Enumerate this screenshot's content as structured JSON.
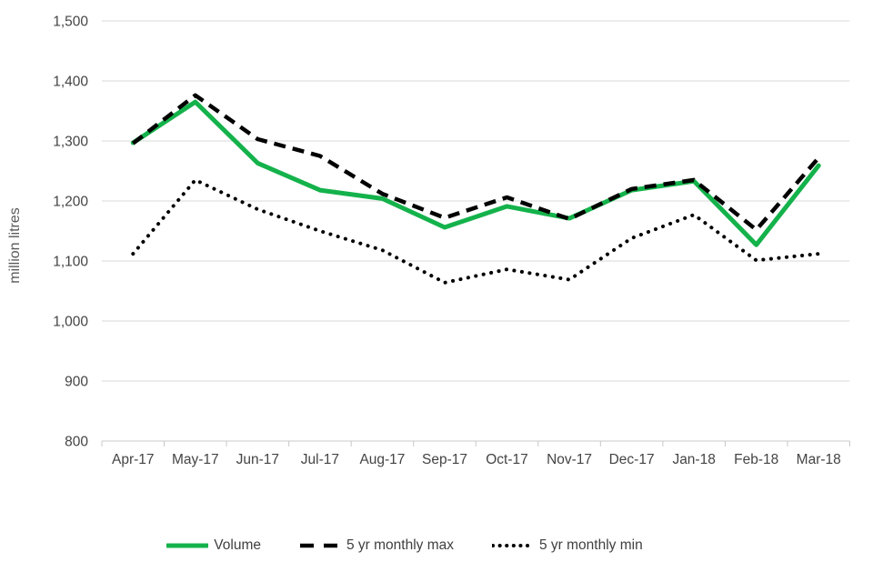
{
  "chart_data": {
    "type": "line",
    "title": "",
    "xlabel": "",
    "ylabel": "million litres",
    "categories": [
      "Apr-17",
      "May-17",
      "Jun-17",
      "Jul-17",
      "Aug-17",
      "Sep-17",
      "Oct-17",
      "Nov-17",
      "Dec-17",
      "Jan-18",
      "Feb-18",
      "Mar-18"
    ],
    "series": [
      {
        "name": "Volume",
        "color": "#14B24B",
        "style": "solid",
        "values": [
          1297,
          1365,
          1263,
          1218,
          1204,
          1156,
          1191,
          1171,
          1218,
          1233,
          1127,
          1259
        ]
      },
      {
        "name": "5 yr monthly max",
        "color": "#000000",
        "style": "dashed",
        "values": [
          1296,
          1376,
          1303,
          1275,
          1212,
          1172,
          1206,
          1170,
          1220,
          1235,
          1152,
          1272
        ]
      },
      {
        "name": "5 yr monthly min",
        "color": "#000000",
        "style": "dotted",
        "values": [
          1112,
          1235,
          1186,
          1150,
          1118,
          1064,
          1086,
          1069,
          1138,
          1177,
          1101,
          1112
        ]
      }
    ],
    "ylim": [
      800,
      1500
    ],
    "y_ticks": [
      {
        "v": 800,
        "label": "800"
      },
      {
        "v": 900,
        "label": "900"
      },
      {
        "v": 1000,
        "label": "1,000"
      },
      {
        "v": 1100,
        "label": "1,100"
      },
      {
        "v": 1200,
        "label": "1,200"
      },
      {
        "v": 1300,
        "label": "1,300"
      },
      {
        "v": 1400,
        "label": "1,400"
      },
      {
        "v": 1500,
        "label": "1,500"
      }
    ],
    "grid": true,
    "legend_position": "bottom",
    "colors": {
      "grid": "#D9D9D9",
      "axis": "#C8C8C8",
      "tick_label": "#444444",
      "axis_title": "#595959"
    }
  }
}
